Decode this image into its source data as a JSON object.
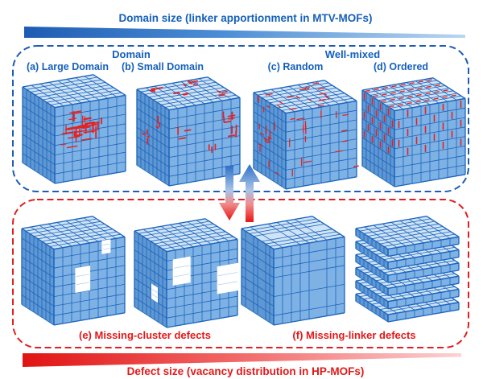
{
  "figure": {
    "top_banner": {
      "title": "Domain size  (linker apportionment in MTV-MOFs)"
    },
    "mtv_section": {
      "group_headers": [
        {
          "label": "Domain"
        },
        {
          "label": "Well-mixed"
        }
      ],
      "panels": [
        {
          "key": "a",
          "label": "(a) Large Domain",
          "structure": "large-domain"
        },
        {
          "key": "b",
          "label": "(b) Small Domain",
          "structure": "small-domain"
        },
        {
          "key": "c",
          "label": "(c) Random",
          "structure": "random-mix"
        },
        {
          "key": "d",
          "label": "(d) Ordered",
          "structure": "ordered-mix"
        }
      ]
    },
    "exchange_arrows": {
      "down": "blue-to-red",
      "up": "red-to-blue"
    },
    "defect_section": {
      "panels": [
        {
          "key": "e1",
          "structure": "missing-cluster-small"
        },
        {
          "key": "e2",
          "structure": "missing-cluster-large"
        },
        {
          "key": "f1",
          "structure": "missing-linker-random"
        },
        {
          "key": "f2",
          "structure": "missing-linker-layered"
        }
      ],
      "captions": [
        {
          "label": "(e) Missing-cluster defects"
        },
        {
          "label": "(f) Missing-linker defects"
        }
      ]
    },
    "bottom_banner": {
      "title": "Defect size (vacancy distribution in HP-MOFs)"
    },
    "colors": {
      "blue_text": "#1560bd",
      "blue_border": "#1d5cb4",
      "red_text": "#e41818",
      "red_border": "#e02020",
      "lattice_stroke": "#1a64be",
      "lattice_face_right": "#7fb2e4",
      "lattice_face_left": "#5e97d2",
      "lattice_face_top": "#cfe3f6",
      "linker_red": "#e32222"
    }
  }
}
